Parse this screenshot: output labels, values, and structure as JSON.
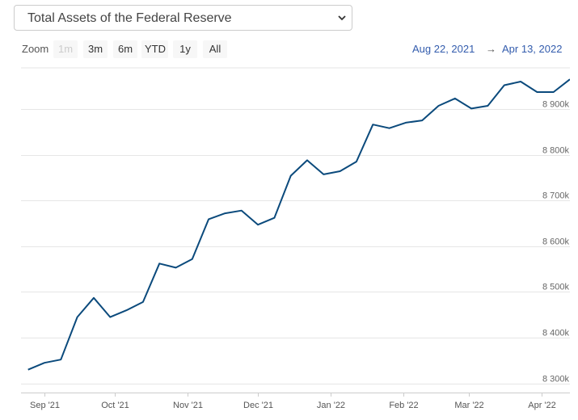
{
  "selector": {
    "value": "Total Assets of the Federal Reserve",
    "icon": "chevron-down-icon"
  },
  "zoom": {
    "label": "Zoom",
    "buttons": [
      {
        "label": "1m",
        "disabled": true
      },
      {
        "label": "3m",
        "disabled": false
      },
      {
        "label": "6m",
        "disabled": false
      },
      {
        "label": "YTD",
        "disabled": false
      },
      {
        "label": "1y",
        "disabled": false
      },
      {
        "label": "All",
        "disabled": false
      }
    ]
  },
  "range": {
    "from": "Aug 22, 2021",
    "arrow": "→",
    "to": "Apr 13, 2022"
  },
  "colors": {
    "line": "#0b4a7c",
    "grid": "#e6e6e6",
    "range_text": "#335cad"
  },
  "chart_data": {
    "type": "line",
    "title": "",
    "xlabel": "",
    "ylabel": "",
    "ylim": [
      8280000,
      8990000
    ],
    "y_ticks": [
      8300000,
      8400000,
      8500000,
      8600000,
      8700000,
      8800000,
      8900000
    ],
    "y_tick_labels": [
      "8 300k",
      "8 400k",
      "8 500k",
      "8 600k",
      "8 700k",
      "8 800k",
      "8 900k"
    ],
    "x_tick_labels": [
      "Sep '21",
      "Oct '21",
      "Nov '21",
      "Dec '21",
      "Jan '22",
      "Feb '22",
      "Mar '22",
      "Apr '22"
    ],
    "x_tick_dates": [
      "2021-09-01",
      "2021-10-01",
      "2021-11-01",
      "2021-12-01",
      "2022-01-01",
      "2022-02-01",
      "2022-03-01",
      "2022-04-01"
    ],
    "x_range": [
      "2021-08-22",
      "2022-04-13"
    ],
    "grid": true,
    "series": [
      {
        "x": [
          "2021-08-25",
          "2021-09-01",
          "2021-09-08",
          "2021-09-15",
          "2021-09-22",
          "2021-09-29",
          "2021-10-06",
          "2021-10-13",
          "2021-10-20",
          "2021-10-27",
          "2021-11-03",
          "2021-11-10",
          "2021-11-17",
          "2021-11-24",
          "2021-12-01",
          "2021-12-08",
          "2021-12-15",
          "2021-12-22",
          "2021-12-29",
          "2022-01-05",
          "2022-01-12",
          "2022-01-19",
          "2022-01-26",
          "2022-02-02",
          "2022-02-09",
          "2022-02-16",
          "2022-02-23",
          "2022-03-02",
          "2022-03-09",
          "2022-03-16",
          "2022-03-23",
          "2022-03-30",
          "2022-04-06",
          "2022-04-13"
        ],
        "values": [
          8330000,
          8345000,
          8352000,
          8445000,
          8487000,
          8445000,
          8460000,
          8478000,
          8562000,
          8553000,
          8572000,
          8659000,
          8672000,
          8678000,
          8647000,
          8662000,
          8754000,
          8788000,
          8757000,
          8764000,
          8785000,
          8866000,
          8858000,
          8870000,
          8875000,
          8907000,
          8923000,
          8901000,
          8907000,
          8952000,
          8960000,
          8937000,
          8937000,
          8965000
        ]
      }
    ]
  }
}
